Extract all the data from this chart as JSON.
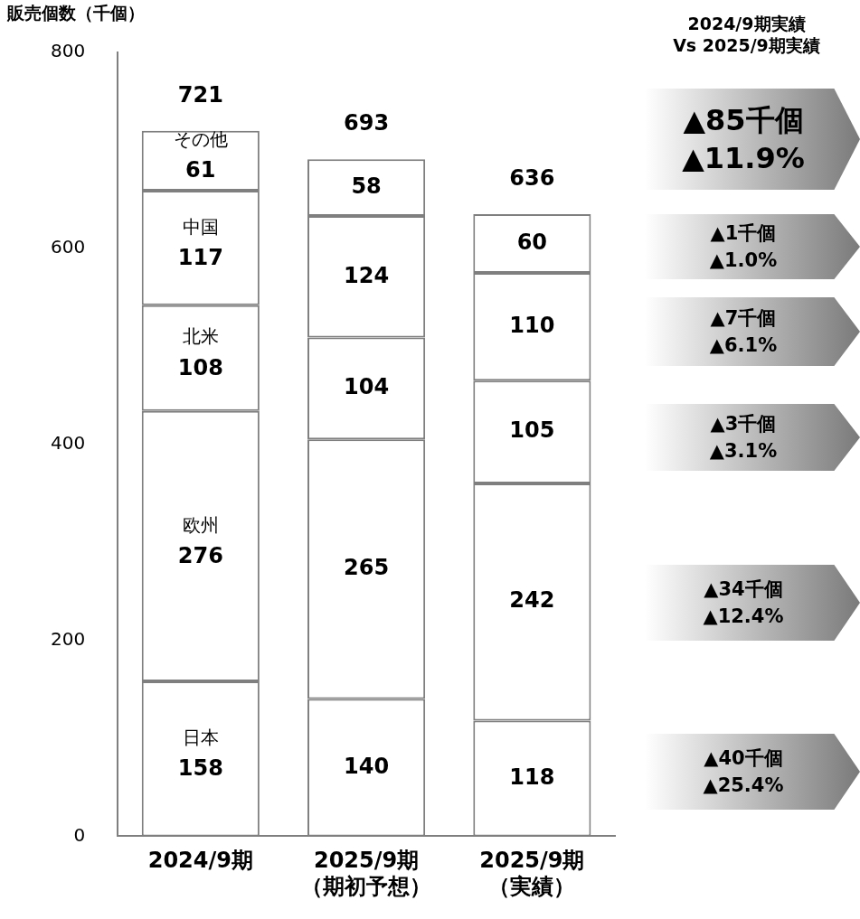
{
  "chart_data": {
    "type": "bar",
    "ylabel": "販売個数（千個）",
    "stacked": true,
    "data_labels": true,
    "legend": false,
    "grid": false,
    "categories": [
      "2024/9期",
      "2025/9期（期初予想）",
      "2025/9期（実績）"
    ],
    "ylim": [
      0,
      800
    ],
    "yticks": [
      0,
      200,
      400,
      600,
      800
    ],
    "series": [
      {
        "name": "日本",
        "color": "#ffffff",
        "values": [
          158,
          140,
          118
        ]
      },
      {
        "name": "欧州",
        "color": "#ffffff",
        "values": [
          276,
          265,
          242
        ]
      },
      {
        "name": "北米",
        "color": "#ffffff",
        "values": [
          108,
          104,
          105
        ]
      },
      {
        "name": "中国",
        "color": "#ffffff",
        "values": [
          117,
          124,
          110
        ]
      },
      {
        "name": "その他",
        "color": "#ffffff",
        "values": [
          61,
          58,
          60
        ]
      }
    ],
    "totals": [
      "721",
      "693",
      "636"
    ],
    "annotations": [
      "2024/9期実績\nVs 2025/9期実績",
      "▲85千個\n▲11.9%",
      "▲1千個\n▲1.0%",
      "▲7千個\n▲6.1%",
      "▲3千個\n▲3.1%",
      "▲34千個\n▲12.4%",
      "▲40千個\n▲25.4%"
    ]
  }
}
